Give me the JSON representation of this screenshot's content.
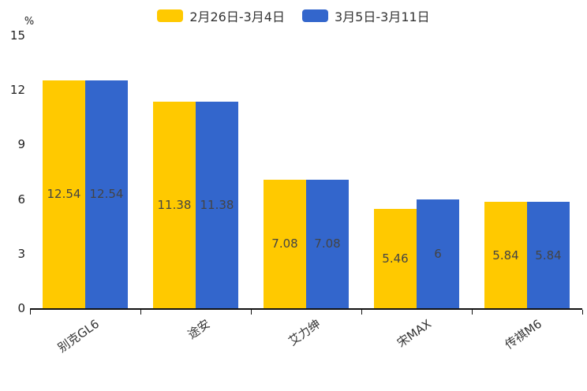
{
  "chart_data": {
    "type": "bar",
    "title": "",
    "unit_label": "%",
    "categories": [
      "别克GL6",
      "途安",
      "艾力绅",
      "宋MAX",
      "传祺M6"
    ],
    "series": [
      {
        "name": "2月26日-3月4日",
        "color": "#FFC900",
        "values": [
          12.54,
          11.38,
          7.08,
          5.46,
          5.84
        ]
      },
      {
        "name": "3月5日-3月11日",
        "color": "#3366CC",
        "values": [
          12.54,
          11.38,
          7.08,
          6,
          5.84
        ]
      }
    ],
    "value_labels": [
      [
        "12.54",
        "11.38",
        "7.08",
        "5.46",
        "5.84"
      ],
      [
        "12.54",
        "11.38",
        "7.08",
        "6",
        "5.84"
      ]
    ],
    "ylim": [
      0,
      15
    ],
    "yticks": [
      0,
      3,
      6,
      9,
      12,
      15
    ],
    "grid": false,
    "legend_position": "top",
    "axis_color": "#111111",
    "value_label_color": "#444444",
    "background_color": "#ffffff"
  }
}
